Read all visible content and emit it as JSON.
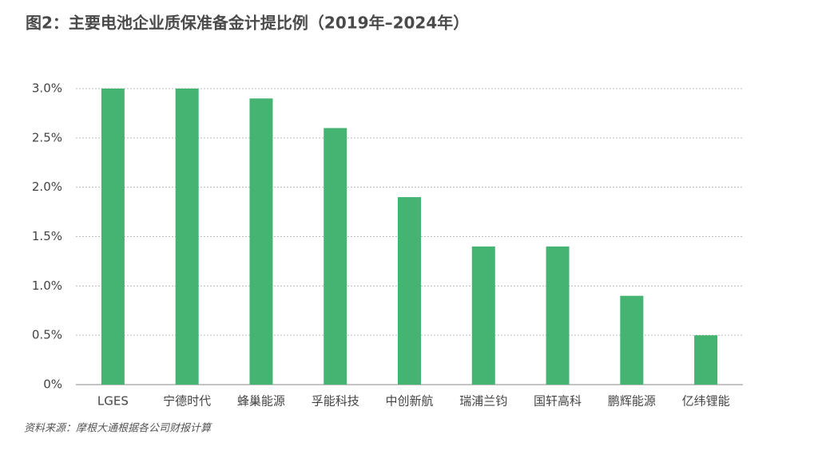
{
  "chart_data": {
    "type": "bar",
    "title": "图2：主要电池企业质保准备金计提比例（2019年–2024年）",
    "source": "资料来源：摩根大通根据各公司财报计算",
    "categories": [
      "LGES",
      "宁德时代",
      "蜂巢能源",
      "孚能科技",
      "中创新航",
      "瑞浦兰钧",
      "国轩高科",
      "鹏辉能源",
      "亿纬锂能"
    ],
    "values": [
      3.0,
      3.0,
      2.9,
      2.6,
      1.9,
      1.4,
      1.4,
      0.9,
      0.5
    ],
    "color": "#45b473",
    "ylim": [
      0,
      3.0
    ],
    "yticks": [
      {
        "value": 0,
        "label": "0%"
      },
      {
        "value": 0.5,
        "label": "0.5%"
      },
      {
        "value": 1.0,
        "label": "1.0%"
      },
      {
        "value": 1.5,
        "label": "1.5%"
      },
      {
        "value": 2.0,
        "label": "2.0%"
      },
      {
        "value": 2.5,
        "label": "2.5%"
      },
      {
        "value": 3.0,
        "label": "3.0%"
      }
    ],
    "grid": true
  }
}
